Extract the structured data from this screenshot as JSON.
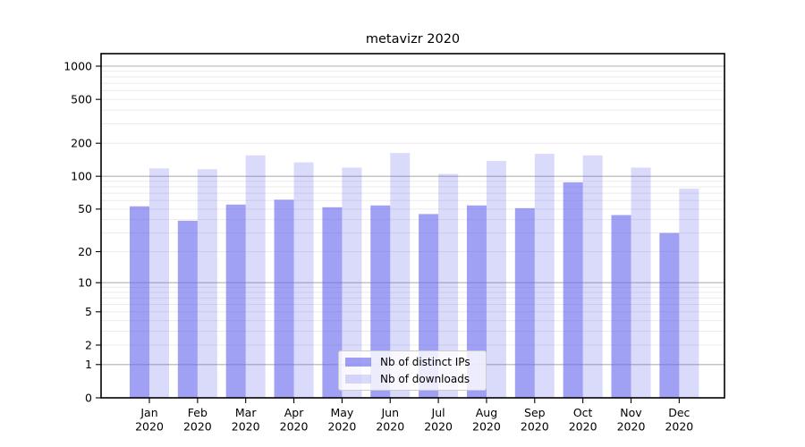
{
  "chart_data": {
    "type": "bar",
    "title": "metavizr 2020",
    "categories": [
      "Jan",
      "Feb",
      "Mar",
      "Apr",
      "May",
      "Jun",
      "Jul",
      "Aug",
      "Sep",
      "Oct",
      "Nov",
      "Dec"
    ],
    "x_year": "2020",
    "series": [
      {
        "name": "Nb of distinct IPs",
        "color": "#6666ee",
        "alpha": 0.62,
        "values": [
          53,
          39,
          55,
          61,
          52,
          54,
          45,
          54,
          51,
          88,
          44,
          30
        ]
      },
      {
        "name": "Nb of downloads",
        "color": "#6666ee",
        "alpha": 0.24,
        "values": [
          118,
          116,
          155,
          134,
          120,
          163,
          105,
          138,
          160,
          155,
          120,
          77
        ]
      }
    ],
    "yscale": "log1p",
    "ylim": [
      0,
      1000
    ],
    "yticks": [
      1000,
      500,
      200,
      100,
      50,
      20,
      10,
      5,
      2,
      1,
      0
    ],
    "grid": {
      "major": [
        1,
        10,
        100,
        1000
      ],
      "minor_multiples": [
        2,
        3,
        4,
        5,
        6,
        7,
        8,
        9
      ],
      "minor_decades": [
        1,
        10,
        100
      ],
      "major_color": "#b0b0b0",
      "minor_color": "#ebebeb"
    },
    "legend_position": "lower center"
  }
}
